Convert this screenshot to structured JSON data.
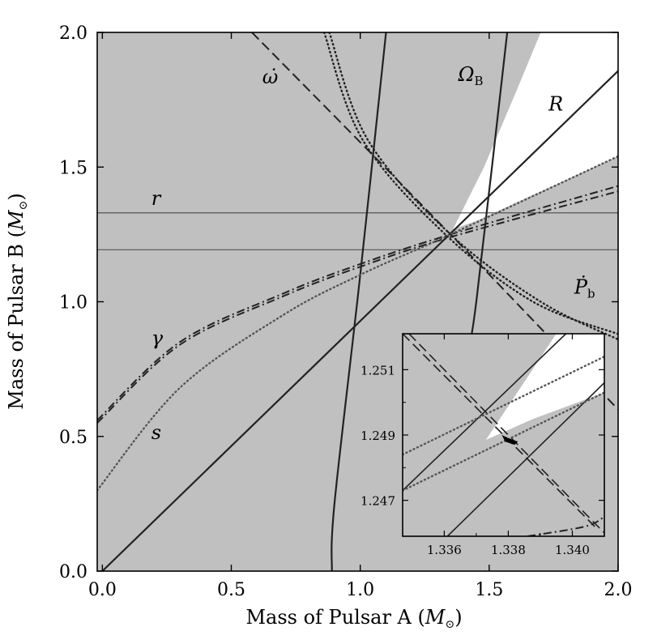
{
  "chart_data": {
    "type": "line",
    "xlabel": "Mass of Pulsar A",
    "xlabel_unit": "M",
    "ylabel": "Mass of Pulsar B",
    "ylabel_unit": "M",
    "xlim": [
      -0.02,
      2.0
    ],
    "ylim": [
      0.0,
      2.0
    ],
    "x_ticks": [
      "0.0",
      "0.5",
      "1.0",
      "1.5",
      "2.0"
    ],
    "y_ticks": [
      "0.0",
      "0.5",
      "1.0",
      "1.5",
      "2.0"
    ],
    "grid": false,
    "shading": {
      "excluded_color": "#c0c0c0",
      "allowed_color": "#ffffff"
    },
    "series": [
      {
        "name": "r",
        "style": "solid-thin",
        "points": [
          [
            -0.02,
            1.33
          ],
          [
            2.0,
            1.33
          ]
        ]
      },
      {
        "name": "r",
        "style": "solid-thin",
        "points": [
          [
            -0.02,
            1.193
          ],
          [
            2.0,
            1.193
          ]
        ]
      },
      {
        "name": "R",
        "style": "solid",
        "points": [
          [
            0.0,
            0.0
          ],
          [
            2.0,
            1.857
          ]
        ]
      },
      {
        "name": "Ω_B",
        "style": "solid",
        "points": [
          [
            1.1,
            2.0
          ],
          [
            1.0,
            1.1
          ],
          [
            0.9,
            0.25
          ],
          [
            0.89,
            0.0
          ]
        ]
      },
      {
        "name": "Ω_B",
        "style": "solid",
        "points": [
          [
            1.57,
            2.0
          ],
          [
            1.45,
            1.0
          ],
          [
            1.42,
            0.85
          ]
        ]
      },
      {
        "name": "ω̇",
        "style": "dashed",
        "points": [
          [
            0.58,
            2.0
          ],
          [
            1.35,
            1.25
          ],
          [
            2.0,
            0.6
          ]
        ]
      },
      {
        "name": "Ṗ_b",
        "style": "dotted",
        "points": [
          [
            0.88,
            2.0
          ],
          [
            1.03,
            1.6
          ],
          [
            1.35,
            1.25
          ],
          [
            1.7,
            1.0
          ],
          [
            2.0,
            0.86
          ]
        ]
      },
      {
        "name": "Ṗ_b",
        "style": "dotted",
        "points": [
          [
            0.86,
            2.0
          ],
          [
            1.01,
            1.6
          ],
          [
            1.33,
            1.25
          ],
          [
            1.67,
            1.0
          ],
          [
            2.0,
            0.88
          ]
        ]
      },
      {
        "name": "γ",
        "style": "dash-dot",
        "points": [
          [
            -0.02,
            0.56
          ],
          [
            0.3,
            0.85
          ],
          [
            0.7,
            1.03
          ],
          [
            1.0,
            1.14
          ],
          [
            1.35,
            1.25
          ],
          [
            2.0,
            1.43
          ]
        ]
      },
      {
        "name": "γ",
        "style": "dash-dot",
        "points": [
          [
            -0.02,
            0.55
          ],
          [
            0.3,
            0.84
          ],
          [
            0.7,
            1.02
          ],
          [
            1.0,
            1.13
          ],
          [
            1.35,
            1.24
          ],
          [
            2.0,
            1.41
          ]
        ]
      },
      {
        "name": "s",
        "style": "dotted-gray",
        "points": [
          [
            -0.02,
            0.3
          ],
          [
            0.3,
            0.68
          ],
          [
            0.7,
            0.95
          ],
          [
            1.0,
            1.1
          ],
          [
            1.35,
            1.25
          ],
          [
            2.0,
            1.54
          ]
        ]
      }
    ],
    "labels": [
      {
        "text": "ω̇",
        "x": 0.62,
        "y": 1.81
      },
      {
        "text": "Ω",
        "sub": "B",
        "x": 1.38,
        "y": 1.82
      },
      {
        "text": "R",
        "x": 1.73,
        "y": 1.71
      },
      {
        "text": "r",
        "x": 0.19,
        "y": 1.36
      },
      {
        "text": "Ṗ",
        "sub": "b",
        "x": 1.83,
        "y": 1.03
      },
      {
        "text": "γ",
        "x": 0.19,
        "y": 0.84
      },
      {
        "text": "s",
        "x": 0.19,
        "y": 0.49
      }
    ],
    "inset": {
      "xlim": [
        1.3347,
        1.341
      ],
      "ylim": [
        1.2459,
        1.2521
      ],
      "x_ticks": [
        "1.336",
        "1.338",
        "1.340"
      ],
      "y_ticks": [
        "1.247",
        "1.249",
        "1.251"
      ]
    }
  }
}
